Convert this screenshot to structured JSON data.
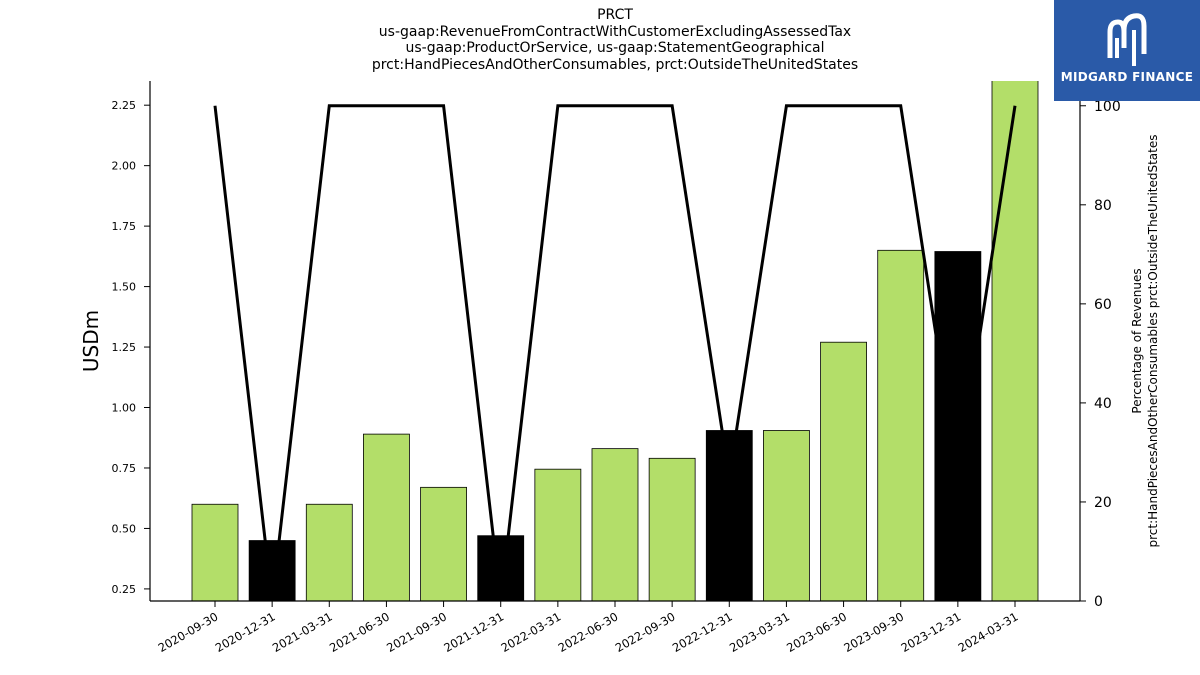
{
  "header": {
    "title_lines": [
      "PRCT",
      "us-gaap:RevenueFromContractWithCustomerExcludingAssessedTax",
      "us-gaap:ProductOrService, us-gaap:StatementGeographical",
      "prct:HandPiecesAndOtherConsumables, prct:OutsideTheUnitedStates"
    ]
  },
  "logo": {
    "text": "MIDGARD FINANCE",
    "icon": "midgard-logo-icon"
  },
  "chart_data": {
    "type": "bar",
    "categories": [
      "2020-09-30",
      "2020-12-31",
      "2021-03-31",
      "2021-06-30",
      "2021-09-30",
      "2021-12-31",
      "2022-03-31",
      "2022-06-30",
      "2022-09-30",
      "2022-12-31",
      "2023-03-31",
      "2023-06-30",
      "2023-09-30",
      "2023-12-31",
      "2024-03-31"
    ],
    "series": [
      {
        "axis": "left",
        "type": "bar",
        "values": [
          0.6,
          0.45,
          0.6,
          0.89,
          0.67,
          0.47,
          0.745,
          0.83,
          0.79,
          0.905,
          0.905,
          1.27,
          1.65,
          1.645,
          2.36
        ],
        "colors": [
          "#b3de69",
          "#000000",
          "#b3de69",
          "#b3de69",
          "#b3de69",
          "#000000",
          "#b3de69",
          "#b3de69",
          "#b3de69",
          "#000000",
          "#b3de69",
          "#b3de69",
          "#b3de69",
          "#000000",
          "#b3de69"
        ]
      },
      {
        "axis": "right",
        "type": "line",
        "color": "#000000",
        "values": [
          100,
          0,
          100,
          100,
          100,
          0,
          100,
          100,
          100,
          25,
          100,
          100,
          100,
          25,
          100
        ]
      }
    ],
    "ylabel": "USDm",
    "y2label_lines": [
      "Percentage of Revenues",
      "prct:HandPiecesAndOtherConsumables prct:OutsideTheUnitedStates"
    ],
    "ylim": [
      0.2,
      2.35
    ],
    "y2lim": [
      0,
      105
    ],
    "yticks": [
      0.25,
      0.5,
      0.75,
      1.0,
      1.25,
      1.5,
      1.75,
      2.0,
      2.25
    ],
    "y2ticks": [
      0,
      20,
      40,
      60,
      80,
      100
    ],
    "grid": false
  }
}
